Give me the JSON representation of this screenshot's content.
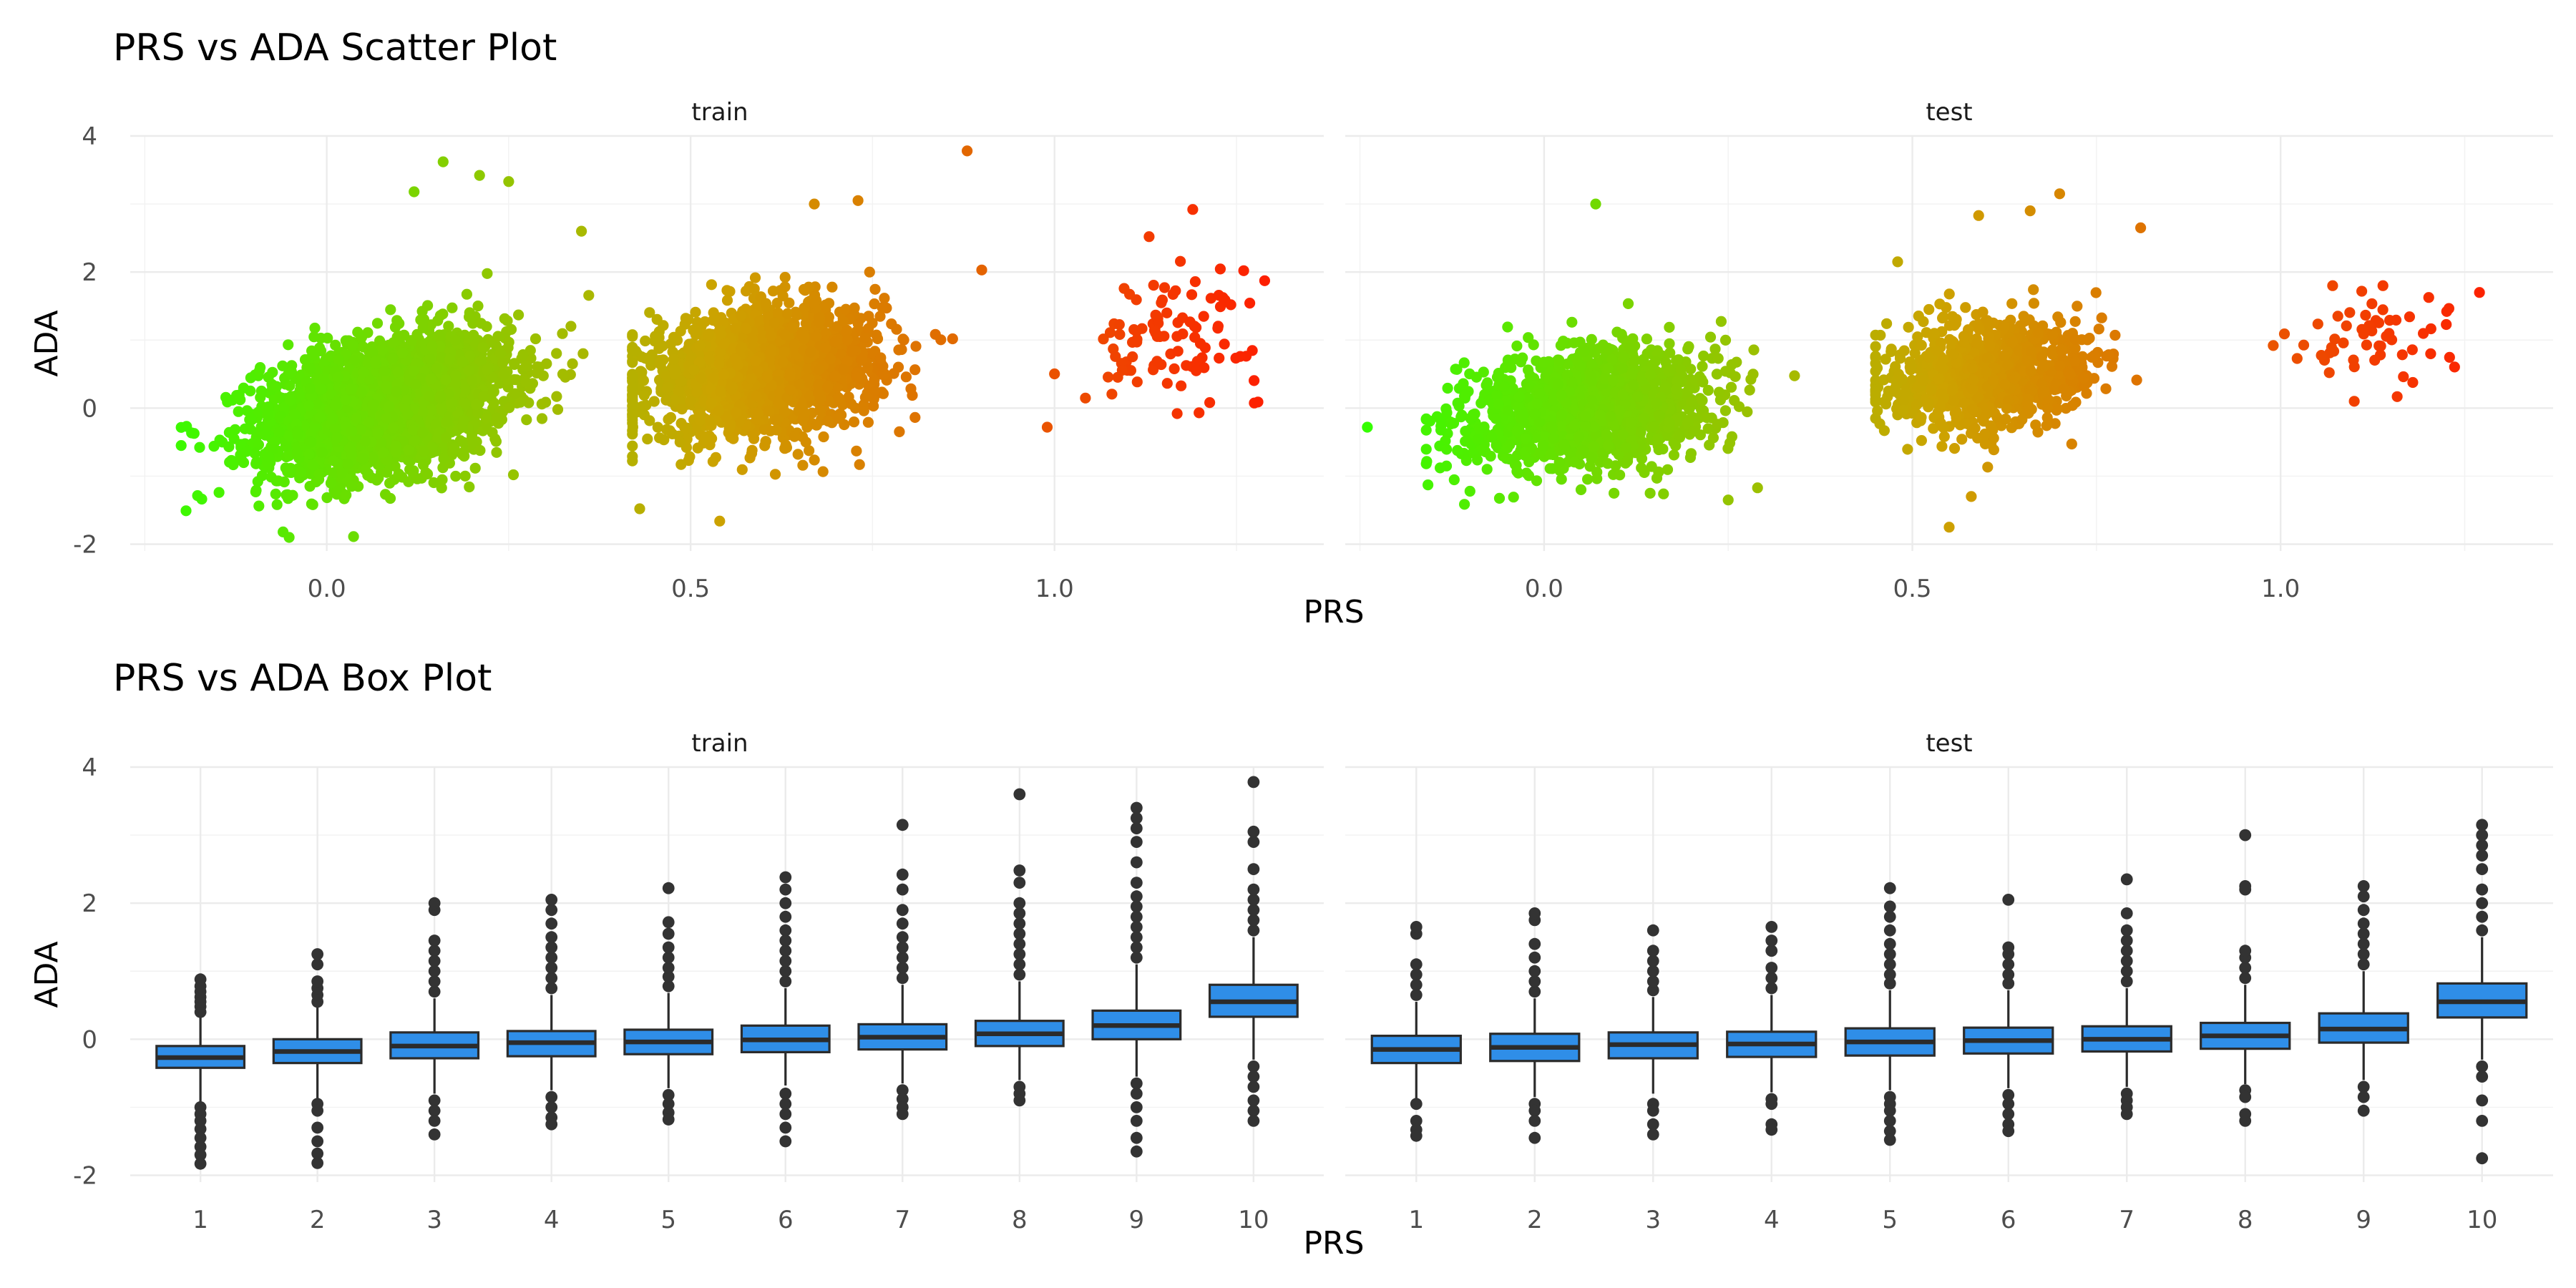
{
  "chart_data": [
    {
      "type": "scatter",
      "title": "PRS vs ADA Scatter Plot",
      "xlabel": "PRS",
      "ylabel": "ADA",
      "xlim": [
        -0.27,
        1.37
      ],
      "ylim": [
        -2.1,
        4.0
      ],
      "x_ticks": [
        {
          "value": 0.0,
          "label": "0.0"
        },
        {
          "value": 0.5,
          "label": "0.5"
        },
        {
          "value": 1.0,
          "label": "1.0"
        }
      ],
      "y_ticks": [
        {
          "value": -2,
          "label": "-2"
        },
        {
          "value": 0,
          "label": "0"
        },
        {
          "value": 2,
          "label": "2"
        },
        {
          "value": 4,
          "label": "4"
        }
      ],
      "color_scale": {
        "low": "#33ff00",
        "mid": "#cca300",
        "high": "#ff1a00",
        "domain": [
          -0.25,
          1.32
        ]
      },
      "grid": true,
      "legend": "none",
      "facets": [
        {
          "name": "train",
          "clusters": [
            {
              "n": 2600,
              "x_mean": 0.08,
              "x_sd": 0.085,
              "x_range": [
                -0.2,
                0.36
              ],
              "y_mean": 0.05,
              "y_sd": 0.48,
              "slope": 2.0,
              "y_range": [
                -1.9,
                3.6
              ]
            },
            {
              "n": 1800,
              "x_mean": 0.6,
              "x_sd": 0.08,
              "x_range": [
                0.42,
                0.86
              ],
              "y_mean": 0.55,
              "y_sd": 0.45,
              "slope": 1.2,
              "y_range": [
                -1.7,
                3.1
              ]
            },
            {
              "n": 100,
              "x_mean": 1.16,
              "x_sd": 0.06,
              "x_range": [
                1.0,
                1.3
              ],
              "y_mean": 1.05,
              "y_sd": 0.42,
              "slope": 1.5,
              "y_range": [
                -0.3,
                2.9
              ]
            }
          ],
          "highlight_points": [
            [
              0.16,
              3.62
            ],
            [
              0.21,
              3.42
            ],
            [
              0.12,
              3.18
            ],
            [
              0.25,
              3.33
            ],
            [
              0.88,
              3.78
            ],
            [
              0.73,
              3.05
            ],
            [
              0.67,
              3.0
            ],
            [
              1.19,
              2.92
            ],
            [
              1.13,
              2.52
            ],
            [
              1.26,
              2.02
            ],
            [
              0.9,
              2.03
            ],
            [
              0.35,
              2.6
            ],
            [
              0.43,
              -1.48
            ],
            [
              0.54,
              -1.66
            ],
            [
              -0.06,
              -1.82
            ],
            [
              -0.2,
              -0.55
            ],
            [
              0.99,
              -0.28
            ]
          ]
        },
        {
          "name": "test",
          "clusters": [
            {
              "n": 1400,
              "x_mean": 0.06,
              "x_sd": 0.085,
              "x_range": [
                -0.16,
                0.34
              ],
              "y_mean": 0.0,
              "y_sd": 0.42,
              "slope": 1.0,
              "y_range": [
                -1.5,
                3.0
              ]
            },
            {
              "n": 900,
              "x_mean": 0.6,
              "x_sd": 0.07,
              "x_range": [
                0.45,
                0.82
              ],
              "y_mean": 0.5,
              "y_sd": 0.4,
              "slope": 0.6,
              "y_range": [
                -1.75,
                3.15
              ]
            },
            {
              "n": 55,
              "x_mean": 1.12,
              "x_sd": 0.06,
              "x_range": [
                0.98,
                1.28
              ],
              "y_mean": 0.95,
              "y_sd": 0.35,
              "slope": 1.2,
              "y_range": [
                0.1,
                1.8
              ]
            }
          ],
          "highlight_points": [
            [
              -0.24,
              -0.28
            ],
            [
              0.07,
              3.0
            ],
            [
              0.7,
              3.15
            ],
            [
              0.66,
              2.9
            ],
            [
              0.59,
              2.83
            ],
            [
              0.81,
              2.65
            ],
            [
              0.48,
              2.15
            ],
            [
              0.55,
              -1.75
            ],
            [
              0.58,
              -1.3
            ],
            [
              0.25,
              -1.35
            ],
            [
              1.27,
              1.7
            ],
            [
              0.99,
              0.92
            ],
            [
              1.1,
              0.1
            ]
          ]
        }
      ]
    },
    {
      "type": "box",
      "title": "PRS vs ADA Box Plot",
      "xlabel": "PRS",
      "ylabel": "ADA",
      "categories": [
        "1",
        "2",
        "3",
        "4",
        "5",
        "6",
        "7",
        "8",
        "9",
        "10"
      ],
      "ylim": [
        -2.1,
        4.0
      ],
      "y_ticks": [
        {
          "value": -2,
          "label": "-2"
        },
        {
          "value": 0,
          "label": "0"
        },
        {
          "value": 2,
          "label": "2"
        },
        {
          "value": 4,
          "label": "4"
        }
      ],
      "box_fill": "#2f8ee8",
      "box_line": "#2b2b2b",
      "outlier_color": "#333333",
      "grid": true,
      "legend": "none",
      "facets": [
        {
          "name": "train",
          "boxes": [
            {
              "category": "1",
              "min": -0.92,
              "q1": -0.42,
              "median": -0.27,
              "q3": -0.1,
              "max": 0.35,
              "outliers_high": [
                0.4,
                0.48,
                0.55,
                0.62,
                0.7,
                0.78,
                0.88
              ],
              "outliers_low": [
                -1.0,
                -1.1,
                -1.2,
                -1.32,
                -1.45,
                -1.58,
                -1.7,
                -1.83
              ]
            },
            {
              "category": "2",
              "min": -0.87,
              "q1": -0.35,
              "median": -0.18,
              "q3": 0.0,
              "max": 0.5,
              "outliers_high": [
                0.55,
                0.65,
                0.75,
                0.85,
                1.1,
                1.25
              ],
              "outliers_low": [
                -0.95,
                -1.05,
                -1.3,
                -1.5,
                -1.68,
                -1.82
              ]
            },
            {
              "category": "3",
              "min": -0.8,
              "q1": -0.28,
              "median": -0.1,
              "q3": 0.1,
              "max": 0.6,
              "outliers_high": [
                0.7,
                0.85,
                1.0,
                1.15,
                1.3,
                1.45,
                1.9,
                2.0
              ],
              "outliers_low": [
                -0.9,
                -1.05,
                -1.2,
                -1.4
              ]
            },
            {
              "category": "4",
              "min": -0.75,
              "q1": -0.25,
              "median": -0.05,
              "q3": 0.12,
              "max": 0.65,
              "outliers_high": [
                0.75,
                0.9,
                1.05,
                1.2,
                1.35,
                1.5,
                1.7,
                1.9,
                2.05
              ],
              "outliers_low": [
                -0.85,
                -1.0,
                -1.15,
                -1.25
              ]
            },
            {
              "category": "5",
              "min": -0.72,
              "q1": -0.22,
              "median": -0.04,
              "q3": 0.14,
              "max": 0.68,
              "outliers_high": [
                0.78,
                0.92,
                1.05,
                1.2,
                1.35,
                1.55,
                1.72,
                2.22
              ],
              "outliers_low": [
                -0.82,
                -0.95,
                -1.08,
                -1.18
              ]
            },
            {
              "category": "6",
              "min": -0.68,
              "q1": -0.19,
              "median": -0.01,
              "q3": 0.2,
              "max": 0.75,
              "outliers_high": [
                0.85,
                1.0,
                1.15,
                1.3,
                1.45,
                1.6,
                1.8,
                2.0,
                2.2,
                2.38
              ],
              "outliers_low": [
                -0.8,
                -0.95,
                -1.1,
                -1.3,
                -1.5
              ]
            },
            {
              "category": "7",
              "min": -0.65,
              "q1": -0.15,
              "median": 0.03,
              "q3": 0.22,
              "max": 0.8,
              "outliers_high": [
                0.9,
                1.05,
                1.2,
                1.35,
                1.5,
                1.7,
                1.9,
                2.2,
                2.42,
                3.15
              ],
              "outliers_low": [
                -0.75,
                -0.88,
                -1.0,
                -1.1
              ]
            },
            {
              "category": "8",
              "min": -0.6,
              "q1": -0.1,
              "median": 0.08,
              "q3": 0.27,
              "max": 0.85,
              "outliers_high": [
                0.95,
                1.1,
                1.25,
                1.4,
                1.55,
                1.7,
                1.85,
                2.0,
                2.3,
                2.48,
                3.6
              ],
              "outliers_low": [
                -0.7,
                -0.8,
                -0.9
              ]
            },
            {
              "category": "9",
              "min": -0.55,
              "q1": 0.0,
              "median": 0.2,
              "q3": 0.42,
              "max": 1.1,
              "outliers_high": [
                1.2,
                1.35,
                1.5,
                1.65,
                1.8,
                1.95,
                2.1,
                2.3,
                2.6,
                2.9,
                3.1,
                3.25,
                3.4
              ],
              "outliers_low": [
                -0.65,
                -0.8,
                -1.0,
                -1.2,
                -1.45,
                -1.65
              ]
            },
            {
              "category": "10",
              "min": -0.3,
              "q1": 0.33,
              "median": 0.55,
              "q3": 0.8,
              "max": 1.5,
              "outliers_high": [
                1.6,
                1.75,
                1.9,
                2.05,
                2.2,
                2.5,
                2.9,
                3.05,
                3.78
              ],
              "outliers_low": [
                -0.4,
                -0.55,
                -0.7,
                -0.9,
                -1.05,
                -1.2
              ]
            }
          ]
        },
        {
          "name": "test",
          "boxes": [
            {
              "category": "1",
              "min": -0.88,
              "q1": -0.35,
              "median": -0.15,
              "q3": 0.05,
              "max": 0.55,
              "outliers_high": [
                0.65,
                0.8,
                0.95,
                1.1,
                1.55,
                1.65
              ],
              "outliers_low": [
                -0.95,
                -1.2,
                -1.33,
                -1.42
              ]
            },
            {
              "category": "2",
              "min": -0.85,
              "q1": -0.32,
              "median": -0.12,
              "q3": 0.08,
              "max": 0.6,
              "outliers_high": [
                0.7,
                0.85,
                1.0,
                1.2,
                1.4,
                1.75,
                1.85
              ],
              "outliers_low": [
                -0.95,
                -1.05,
                -1.2,
                -1.45
              ]
            },
            {
              "category": "3",
              "min": -0.8,
              "q1": -0.28,
              "median": -0.08,
              "q3": 0.1,
              "max": 0.62,
              "outliers_high": [
                0.72,
                0.85,
                1.0,
                1.15,
                1.3,
                1.6
              ],
              "outliers_low": [
                -0.95,
                -1.05,
                -1.25,
                -1.4
              ]
            },
            {
              "category": "4",
              "min": -0.78,
              "q1": -0.26,
              "median": -0.07,
              "q3": 0.11,
              "max": 0.65,
              "outliers_high": [
                0.75,
                0.9,
                1.05,
                1.3,
                1.45,
                1.65
              ],
              "outliers_low": [
                -0.88,
                -0.95,
                -1.25,
                -1.33
              ]
            },
            {
              "category": "5",
              "min": -0.75,
              "q1": -0.24,
              "median": -0.04,
              "q3": 0.16,
              "max": 0.72,
              "outliers_high": [
                0.82,
                0.95,
                1.1,
                1.25,
                1.4,
                1.6,
                1.8,
                1.95,
                2.22
              ],
              "outliers_low": [
                -0.85,
                -0.95,
                -1.05,
                -1.2,
                -1.35,
                -1.48
              ]
            },
            {
              "category": "6",
              "min": -0.72,
              "q1": -0.21,
              "median": -0.02,
              "q3": 0.17,
              "max": 0.72,
              "outliers_high": [
                0.82,
                0.95,
                1.1,
                1.25,
                1.35,
                2.05
              ],
              "outliers_low": [
                -0.82,
                -0.95,
                -1.1,
                -1.25,
                -1.35
              ]
            },
            {
              "category": "7",
              "min": -0.7,
              "q1": -0.18,
              "median": 0.0,
              "q3": 0.19,
              "max": 0.75,
              "outliers_high": [
                0.85,
                1.0,
                1.15,
                1.3,
                1.45,
                1.6,
                1.85,
                2.35
              ],
              "outliers_low": [
                -0.8,
                -0.9,
                -1.0,
                -1.1
              ]
            },
            {
              "category": "8",
              "min": -0.66,
              "q1": -0.14,
              "median": 0.05,
              "q3": 0.24,
              "max": 0.8,
              "outliers_high": [
                0.9,
                1.05,
                1.2,
                1.3,
                2.2,
                2.25,
                3.0
              ],
              "outliers_low": [
                -0.75,
                -0.85,
                -1.1,
                -1.2
              ]
            },
            {
              "category": "9",
              "min": -0.6,
              "q1": -0.05,
              "median": 0.15,
              "q3": 0.38,
              "max": 1.0,
              "outliers_high": [
                1.1,
                1.25,
                1.4,
                1.55,
                1.7,
                1.9,
                2.1,
                2.25
              ],
              "outliers_low": [
                -0.7,
                -0.85,
                -1.05
              ]
            },
            {
              "category": "10",
              "min": -0.3,
              "q1": 0.32,
              "median": 0.55,
              "q3": 0.82,
              "max": 1.5,
              "outliers_high": [
                1.6,
                1.8,
                2.0,
                2.2,
                2.5,
                2.7,
                2.85,
                3.0,
                3.15
              ],
              "outliers_low": [
                -0.4,
                -0.55,
                -0.9,
                -1.2,
                -1.75
              ]
            }
          ]
        }
      ]
    }
  ]
}
